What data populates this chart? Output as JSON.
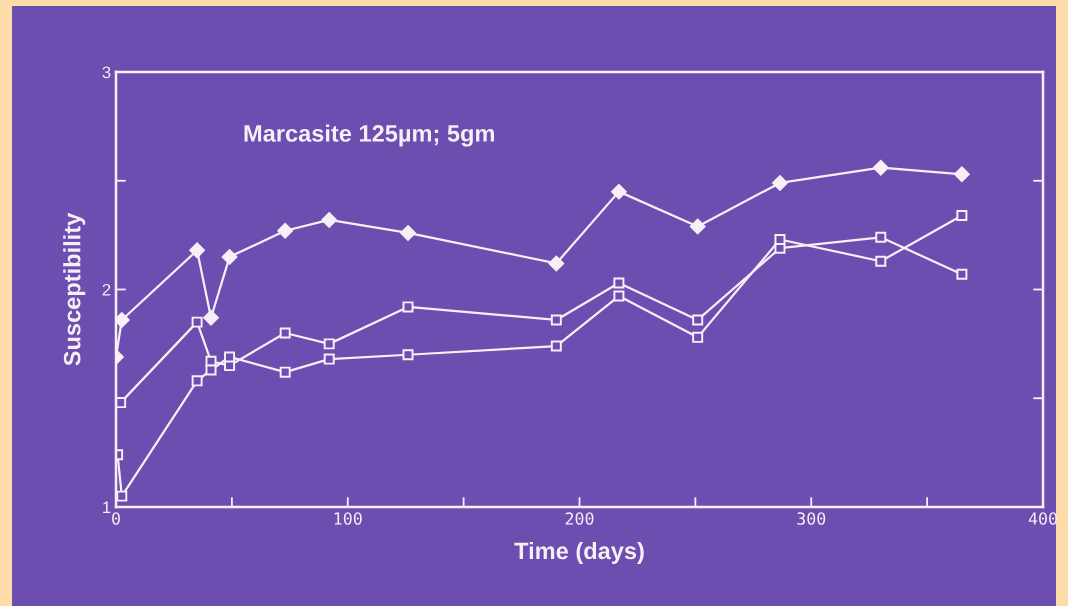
{
  "chart_data": {
    "type": "line",
    "title": "Marcasite 125µm; 5gm",
    "xlabel": "Time (days)",
    "ylabel": "Susceptibility",
    "xlim": [
      0,
      400
    ],
    "xticks": [
      0,
      {
        "value": 50,
        "label": null
      },
      100,
      {
        "value": 150,
        "label": null
      },
      200,
      {
        "value": 250,
        "label": null
      },
      300,
      {
        "value": 350,
        "label": null
      },
      400
    ],
    "ylim": [
      1,
      3
    ],
    "yticks": [
      1,
      {
        "value": 1.5,
        "label": null
      },
      2,
      {
        "value": 2.5,
        "label": null
      },
      3
    ],
    "grid": false,
    "legend": false,
    "line_style": "solid",
    "series": [
      {
        "color": "#f6f0f6",
        "marker": "diamond",
        "x": [
          0,
          2.5,
          35,
          41,
          49,
          73,
          92,
          126,
          190,
          217,
          251,
          286.5,
          330,
          365
        ],
        "values": [
          1.69,
          1.86,
          2.18,
          1.87,
          2.15,
          2.27,
          2.32,
          2.26,
          2.12,
          2.45,
          2.29,
          2.49,
          2.56,
          2.53
        ]
      },
      {
        "color": "#f6f0f6",
        "marker": "square",
        "x": [
          2,
          35,
          41,
          49,
          73,
          92,
          126,
          190,
          217,
          251,
          286.5,
          330,
          365
        ],
        "values": [
          1.48,
          1.85,
          1.67,
          1.65,
          1.8,
          1.75,
          1.92,
          1.86,
          2.03,
          1.86,
          2.19,
          2.24,
          2.07
        ]
      },
      {
        "color": "#f6f0f6",
        "marker": "square",
        "x": [
          0.7,
          2.5,
          35,
          41,
          49,
          73,
          92,
          126,
          190,
          217,
          251,
          286.5,
          330,
          365
        ],
        "values": [
          1.24,
          1.05,
          1.58,
          1.63,
          1.69,
          1.62,
          1.68,
          1.7,
          1.74,
          1.97,
          1.78,
          2.23,
          2.13,
          2.34
        ]
      }
    ]
  }
}
